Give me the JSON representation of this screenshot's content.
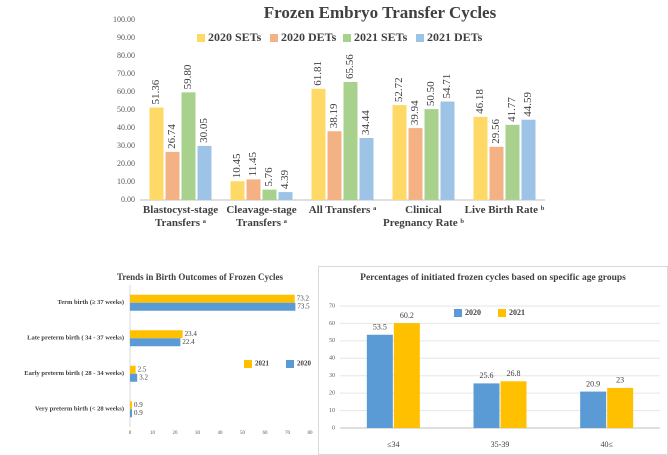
{
  "chart_data": [
    {
      "type": "bar",
      "title": "Frozen Embryo Transfer Cycles",
      "categories": [
        "Blastocyst-stage Transfers ᵃ",
        "Cleavage-stage Transfers ᵃ",
        "All Transfers ᵃ",
        "Clinical Pregnancy Rate ᵇ",
        "Live Birth Rate ᵇ"
      ],
      "series": [
        {
          "name": "2020 SETs",
          "color": "#ffd966",
          "values": [
            51.36,
            10.45,
            61.81,
            52.72,
            46.18
          ],
          "value_labels": [
            "51.36",
            "10.45",
            "61.81",
            "52.72",
            "46.18"
          ]
        },
        {
          "name": "2020 DETs",
          "color": "#f4b183",
          "values": [
            26.74,
            11.45,
            38.19,
            39.94,
            29.56
          ],
          "value_labels": [
            "26.74",
            "11.45",
            "38.19",
            "39.94",
            "29.56"
          ]
        },
        {
          "name": "2021 SETs",
          "color": "#a9d18e",
          "values": [
            59.8,
            5.76,
            65.56,
            50.5,
            41.77
          ],
          "value_labels": [
            "59.80",
            "5.76",
            "65.56",
            "50.50",
            "41.77"
          ]
        },
        {
          "name": "2021 DETs",
          "color": "#9dc3e6",
          "values": [
            30.05,
            4.39,
            34.44,
            54.71,
            44.59
          ],
          "value_labels": [
            "30.05",
            "4.39",
            "34.44",
            "54.71",
            "44.59"
          ]
        }
      ],
      "ylim": [
        0,
        100
      ],
      "yticks": [
        {
          "value": 0,
          "label": "0.00"
        },
        {
          "value": 10,
          "label": "10.00"
        },
        {
          "value": 20,
          "label": "20.00"
        },
        {
          "value": 30,
          "label": "30.00"
        },
        {
          "value": 40,
          "label": "40.00"
        },
        {
          "value": 50,
          "label": "50.00"
        },
        {
          "value": 60,
          "label": "60.00"
        },
        {
          "value": 70,
          "label": "70.00"
        },
        {
          "value": 80,
          "label": "80.00"
        },
        {
          "value": 90,
          "label": "90.00"
        },
        {
          "value": 100,
          "label": "100.00"
        }
      ],
      "grid": false,
      "legend": "top"
    },
    {
      "type": "hbar",
      "title": "Trends in Birth Outcomes of Frozen Cycles",
      "categories": [
        "Term birth (≥ 37 weeks)",
        "Late preterm birth ( 34 - 37 weeks)",
        "Early preterm birth ( 28 - 34 weeks)",
        "Very preterm birth (< 28 weeks)"
      ],
      "series": [
        {
          "name": "2021",
          "color": "#ffc000",
          "values": [
            73.2,
            23.4,
            2.5,
            0.9
          ]
        },
        {
          "name": "2020",
          "color": "#5b9bd5",
          "values": [
            73.5,
            22.4,
            3.2,
            0.9
          ]
        }
      ],
      "xlim": [
        0,
        80
      ],
      "xticks": [
        0,
        10,
        20,
        30,
        40,
        50,
        60,
        70,
        80
      ],
      "grid": false,
      "legend": "center"
    },
    {
      "type": "bar",
      "title": "Percentages of initiated frozen cycles based on specific age groups",
      "categories": [
        "≤34",
        "35-39",
        "40≤"
      ],
      "series": [
        {
          "name": "2020",
          "color": "#5b9bd5",
          "values": [
            53.5,
            25.6,
            20.9
          ]
        },
        {
          "name": "2021",
          "color": "#ffc000",
          "values": [
            60.2,
            26.8,
            23
          ]
        }
      ],
      "ylim": [
        0,
        70
      ],
      "yticks": [
        0,
        10,
        20,
        30,
        40,
        50,
        60,
        70
      ],
      "grid": true,
      "legend": "top"
    }
  ]
}
